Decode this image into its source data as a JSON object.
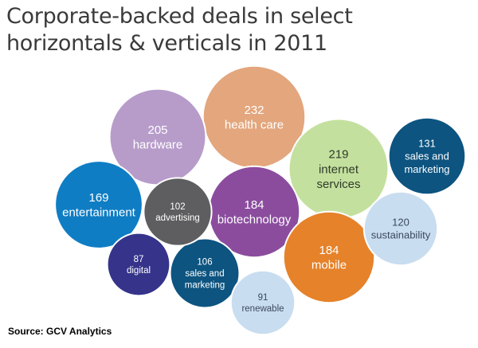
{
  "title_line1": "Corporate-backed deals in select",
  "title_line2": "horizontals & verticals in 2011",
  "source": "Source: GCV Analytics",
  "chart_data": {
    "type": "bubble",
    "title": "Corporate-backed deals in select horizontals & verticals in 2011",
    "bubbles": [
      {
        "label": "health care",
        "value": 232,
        "color": "#e3a67d",
        "text_color": "#ffffff"
      },
      {
        "label": "internet services",
        "value": 219,
        "color": "#c4e09e",
        "text_color": "#2f3b2a"
      },
      {
        "label": "hardware",
        "value": 205,
        "color": "#b79cca",
        "text_color": "#ffffff"
      },
      {
        "label": "biotechnology",
        "value": 184,
        "color": "#8b4c9e",
        "text_color": "#ffffff"
      },
      {
        "label": "mobile",
        "value": 184,
        "color": "#e5822a",
        "text_color": "#ffffff"
      },
      {
        "label": "entertainment",
        "value": 169,
        "color": "#0f7dc4",
        "text_color": "#ffffff"
      },
      {
        "label": "sales and marketing",
        "value": 131,
        "color": "#0d5480",
        "text_color": "#ffffff"
      },
      {
        "label": "sustainability",
        "value": 120,
        "color": "#c9ddf0",
        "text_color": "#3a4a5a"
      },
      {
        "label": "sales and marketing",
        "value": 106,
        "color": "#0d5480",
        "text_color": "#ffffff"
      },
      {
        "label": "advertising",
        "value": 102,
        "color": "#5e5e60",
        "text_color": "#ffffff"
      },
      {
        "label": "renewable",
        "value": 91,
        "color": "#c9ddf0",
        "text_color": "#3a4a5a"
      },
      {
        "label": "digital",
        "value": 87,
        "color": "#35338a",
        "text_color": "#ffffff"
      }
    ]
  }
}
